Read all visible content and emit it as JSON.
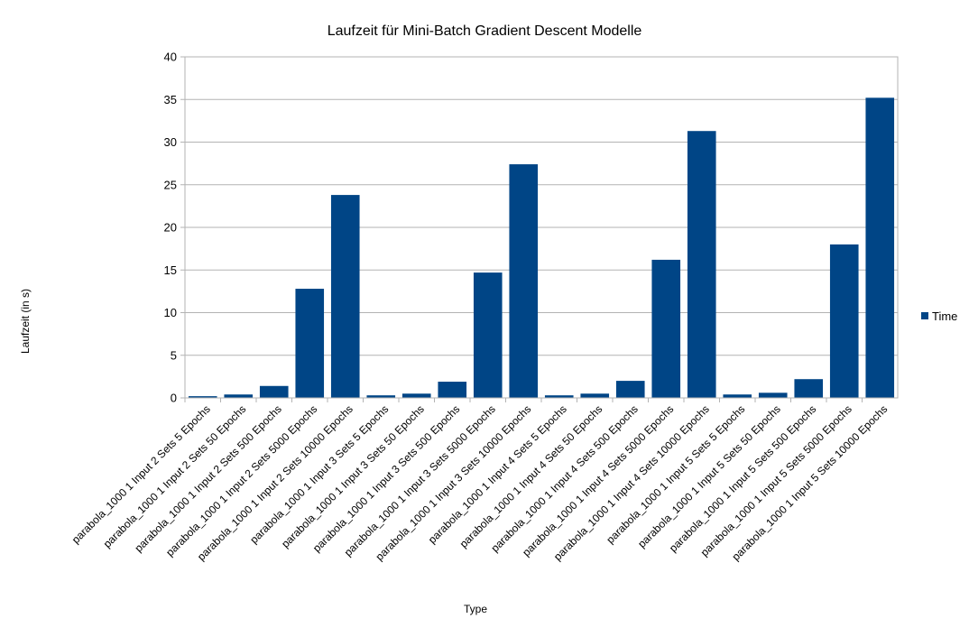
{
  "chart_data": {
    "type": "bar",
    "title": "Laufzeit für Mini-Batch Gradient Descent Modelle",
    "xlabel": "Type",
    "ylabel": "Laufzeit (in s)",
    "ylim": [
      0,
      40
    ],
    "yticks": [
      0,
      5,
      10,
      15,
      20,
      25,
      30,
      35,
      40
    ],
    "grid": true,
    "legend_position": "right",
    "categories": [
      "parabola_1000 1 Input 2 Sets 5 Epochs",
      "parabola_1000 1 Input 2 Sets 50 Epochs",
      "parabola_1000 1 Input 2 Sets 500 Epochs",
      "parabola_1000 1 Input 2 Sets 5000 Epochs",
      "parabola_1000 1 Input 2 Sets 10000 Epochs",
      "parabola_1000 1 Input 3 Sets 5 Epochs",
      "parabola_1000 1 Input 3 Sets 50 Epochs",
      "parabola_1000 1 Input 3 Sets 500 Epochs",
      "parabola_1000 1 Input 3 Sets 5000 Epochs",
      "parabola_1000 1 Input 3 Sets 10000 Epochs",
      "parabola_1000 1 Input 4 Sets 5 Epochs",
      "parabola_1000 1 Input 4 Sets 50 Epochs",
      "parabola_1000 1 Input 4 Sets 500 Epochs",
      "parabola_1000 1 Input 4 Sets 5000 Epochs",
      "parabola_1000 1 Input 4 Sets 10000 Epochs",
      "parabola_1000 1 Input 5 Sets 5 Epochs",
      "parabola_1000 1 Input 5 Sets 50 Epochs",
      "parabola_1000 1 Input 5 Sets 500 Epochs",
      "parabola_1000 1 Input 5 Sets 5000 Epochs",
      "parabola_1000 1 Input 5 Sets 10000 Epochs"
    ],
    "series": [
      {
        "name": "Time",
        "color": "#004586",
        "values": [
          0.2,
          0.4,
          1.4,
          12.8,
          23.8,
          0.3,
          0.5,
          1.9,
          14.7,
          27.4,
          0.3,
          0.5,
          2.0,
          16.2,
          31.3,
          0.4,
          0.6,
          2.2,
          18.0,
          35.2
        ]
      }
    ]
  }
}
